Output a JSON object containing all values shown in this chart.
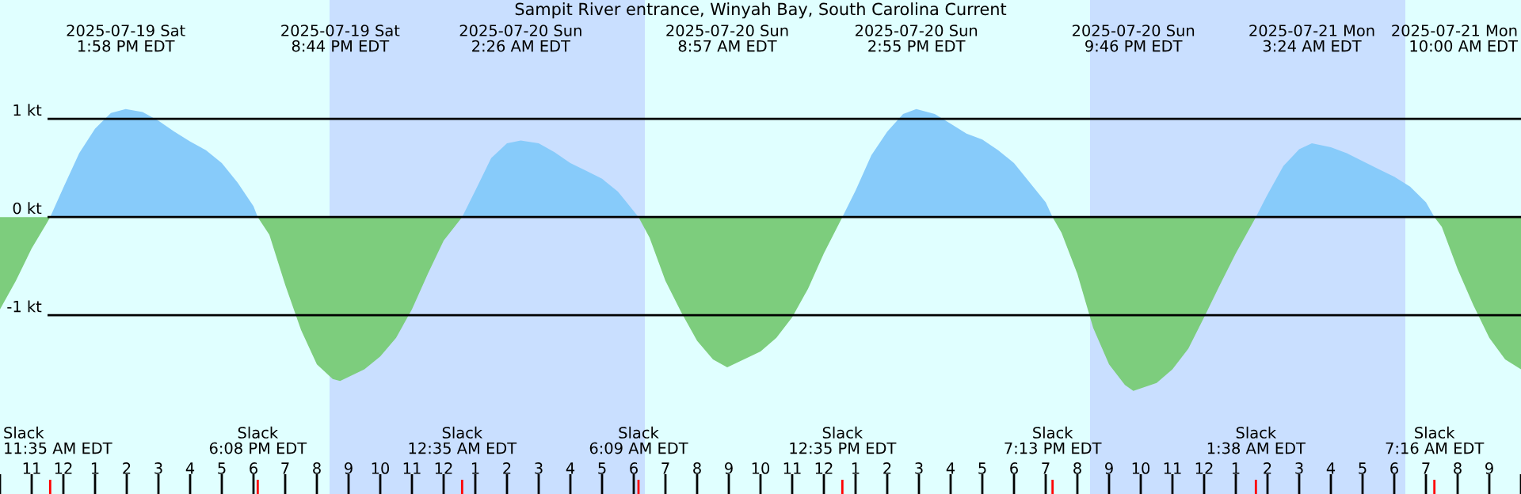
{
  "chart_data": {
    "type": "area",
    "title": "Sampit River entrance, Winyah Bay, South Carolina Current",
    "series": [
      {
        "color": "#87cbfa",
        "x": [
          "2025-07-19T11:35",
          "2025-07-19T12:00",
          "2025-07-19T12:30",
          "2025-07-19T13:00",
          "2025-07-19T13:30",
          "2025-07-19T13:58",
          "2025-07-19T14:30",
          "2025-07-19T15:00",
          "2025-07-19T15:30",
          "2025-07-19T16:00",
          "2025-07-19T16:30",
          "2025-07-19T17:00",
          "2025-07-19T17:30",
          "2025-07-19T18:00",
          "2025-07-19T18:08",
          null,
          "2025-07-20T00:35",
          "2025-07-20T01:00",
          "2025-07-20T01:30",
          "2025-07-20T02:00",
          "2025-07-20T02:26",
          "2025-07-20T03:00",
          "2025-07-20T03:30",
          "2025-07-20T04:00",
          "2025-07-20T04:30",
          "2025-07-20T05:00",
          "2025-07-20T05:30",
          "2025-07-20T06:09",
          null,
          "2025-07-20T12:35",
          "2025-07-20T13:00",
          "2025-07-20T13:30",
          "2025-07-20T14:00",
          "2025-07-20T14:30",
          "2025-07-20T14:55",
          "2025-07-20T15:30",
          "2025-07-20T16:00",
          "2025-07-20T16:30",
          "2025-07-20T17:00",
          "2025-07-20T17:30",
          "2025-07-20T18:00",
          "2025-07-20T18:30",
          "2025-07-20T19:00",
          "2025-07-20T19:13",
          null,
          "2025-07-21T01:38",
          "2025-07-21T02:00",
          "2025-07-21T02:30",
          "2025-07-21T03:00",
          "2025-07-21T03:24",
          "2025-07-21T04:00",
          "2025-07-21T04:30",
          "2025-07-21T05:00",
          "2025-07-21T05:30",
          "2025-07-21T06:00",
          "2025-07-21T06:30",
          "2025-07-21T07:00",
          "2025-07-21T07:16"
        ],
        "values": [
          0,
          0.3,
          0.65,
          0.9,
          1.06,
          1.1,
          1.07,
          0.98,
          0.87,
          0.77,
          0.68,
          0.55,
          0.35,
          0.11,
          0,
          null,
          0,
          0.27,
          0.6,
          0.75,
          0.78,
          0.75,
          0.66,
          0.55,
          0.47,
          0.39,
          0.26,
          0,
          null,
          0,
          0.27,
          0.63,
          0.87,
          1.05,
          1.1,
          1.05,
          0.95,
          0.85,
          0.79,
          0.68,
          0.55,
          0.35,
          0.15,
          0,
          null,
          0,
          0.23,
          0.52,
          0.69,
          0.75,
          0.71,
          0.65,
          0.57,
          0.49,
          0.41,
          0.31,
          0.15,
          0
        ]
      },
      {
        "color": "#7dcd7d",
        "x": [
          "2025-07-19T10:00",
          "2025-07-19T10:30",
          "2025-07-19T11:00",
          "2025-07-19T11:30",
          "2025-07-19T11:35",
          null,
          "2025-07-19T18:08",
          "2025-07-19T18:30",
          "2025-07-19T19:00",
          "2025-07-19T19:30",
          "2025-07-19T20:00",
          "2025-07-19T20:30",
          "2025-07-19T20:44",
          "2025-07-19T21:30",
          "2025-07-19T22:00",
          "2025-07-19T22:30",
          "2025-07-19T23:00",
          "2025-07-19T23:30",
          "2025-07-20T00:00",
          "2025-07-20T00:35",
          null,
          "2025-07-20T06:09",
          "2025-07-20T06:30",
          "2025-07-20T07:00",
          "2025-07-20T07:30",
          "2025-07-20T08:00",
          "2025-07-20T08:30",
          "2025-07-20T08:57",
          "2025-07-20T10:00",
          "2025-07-20T10:30",
          "2025-07-20T11:00",
          "2025-07-20T11:30",
          "2025-07-20T12:00",
          "2025-07-20T12:35",
          null,
          "2025-07-20T19:13",
          "2025-07-20T19:30",
          "2025-07-20T20:00",
          "2025-07-20T20:30",
          "2025-07-20T21:00",
          "2025-07-20T21:30",
          "2025-07-20T21:46",
          "2025-07-20T22:30",
          "2025-07-20T23:00",
          "2025-07-20T23:30",
          "2025-07-21T00:00",
          "2025-07-21T00:30",
          "2025-07-21T01:00",
          "2025-07-21T01:38",
          null,
          "2025-07-21T07:16",
          "2025-07-21T07:30",
          "2025-07-21T08:00",
          "2025-07-21T08:30",
          "2025-07-21T09:00",
          "2025-07-21T09:30",
          "2025-07-21T10:00"
        ],
        "values": [
          -0.94,
          -0.65,
          -0.32,
          -0.05,
          0,
          null,
          0,
          -0.18,
          -0.69,
          -1.15,
          -1.5,
          -1.65,
          -1.67,
          -1.55,
          -1.42,
          -1.23,
          -0.94,
          -0.58,
          -0.24,
          0,
          null,
          0,
          -0.21,
          -0.65,
          -0.97,
          -1.26,
          -1.45,
          -1.53,
          -1.37,
          -1.23,
          -1.02,
          -0.73,
          -0.37,
          0,
          null,
          0,
          -0.16,
          -0.58,
          -1.13,
          -1.5,
          -1.71,
          -1.77,
          -1.69,
          -1.55,
          -1.34,
          -1.02,
          -0.69,
          -0.37,
          0,
          null,
          0,
          -0.1,
          -0.53,
          -0.9,
          -1.23,
          -1.45,
          -1.55
        ]
      }
    ],
    "xlim": [
      "2025-07-19T10:00",
      "2025-07-21T10:00"
    ],
    "xticks": [
      {
        "value": "2025-07-19T10:00",
        "label": null
      },
      {
        "value": "2025-07-19T11:00",
        "label": "11"
      },
      {
        "value": "2025-07-19T12:00",
        "label": "12"
      },
      {
        "value": "2025-07-19T13:00",
        "label": "1"
      },
      {
        "value": "2025-07-19T14:00",
        "label": "2"
      },
      {
        "value": "2025-07-19T15:00",
        "label": "3"
      },
      {
        "value": "2025-07-19T16:00",
        "label": "4"
      },
      {
        "value": "2025-07-19T17:00",
        "label": "5"
      },
      {
        "value": "2025-07-19T18:00",
        "label": "6"
      },
      {
        "value": "2025-07-19T19:00",
        "label": "7"
      },
      {
        "value": "2025-07-19T20:00",
        "label": "8"
      },
      {
        "value": "2025-07-19T21:00",
        "label": "9"
      },
      {
        "value": "2025-07-19T22:00",
        "label": "10"
      },
      {
        "value": "2025-07-19T23:00",
        "label": "11"
      },
      {
        "value": "2025-07-20T00:00",
        "label": "12"
      },
      {
        "value": "2025-07-20T01:00",
        "label": "1"
      },
      {
        "value": "2025-07-20T02:00",
        "label": "2"
      },
      {
        "value": "2025-07-20T03:00",
        "label": "3"
      },
      {
        "value": "2025-07-20T04:00",
        "label": "4"
      },
      {
        "value": "2025-07-20T05:00",
        "label": "5"
      },
      {
        "value": "2025-07-20T06:00",
        "label": "6"
      },
      {
        "value": "2025-07-20T07:00",
        "label": "7"
      },
      {
        "value": "2025-07-20T08:00",
        "label": "8"
      },
      {
        "value": "2025-07-20T09:00",
        "label": "9"
      },
      {
        "value": "2025-07-20T10:00",
        "label": "10"
      },
      {
        "value": "2025-07-20T11:00",
        "label": "11"
      },
      {
        "value": "2025-07-20T12:00",
        "label": "12"
      },
      {
        "value": "2025-07-20T13:00",
        "label": "1"
      },
      {
        "value": "2025-07-20T14:00",
        "label": "2"
      },
      {
        "value": "2025-07-20T15:00",
        "label": "3"
      },
      {
        "value": "2025-07-20T16:00",
        "label": "4"
      },
      {
        "value": "2025-07-20T17:00",
        "label": "5"
      },
      {
        "value": "2025-07-20T18:00",
        "label": "6"
      },
      {
        "value": "2025-07-20T19:00",
        "label": "7"
      },
      {
        "value": "2025-07-20T20:00",
        "label": "8"
      },
      {
        "value": "2025-07-20T21:00",
        "label": "9"
      },
      {
        "value": "2025-07-20T22:00",
        "label": "10"
      },
      {
        "value": "2025-07-20T23:00",
        "label": "11"
      },
      {
        "value": "2025-07-21T00:00",
        "label": "12"
      },
      {
        "value": "2025-07-21T01:00",
        "label": "1"
      },
      {
        "value": "2025-07-21T02:00",
        "label": "2"
      },
      {
        "value": "2025-07-21T03:00",
        "label": "3"
      },
      {
        "value": "2025-07-21T04:00",
        "label": "4"
      },
      {
        "value": "2025-07-21T05:00",
        "label": "5"
      },
      {
        "value": "2025-07-21T06:00",
        "label": "6"
      },
      {
        "value": "2025-07-21T07:00",
        "label": "7"
      },
      {
        "value": "2025-07-21T08:00",
        "label": "8"
      },
      {
        "value": "2025-07-21T09:00",
        "label": "9"
      },
      {
        "value": "2025-07-21T10:00",
        "label": null
      }
    ],
    "ylim": [
      -2.82,
      2.21
    ],
    "yticks": [
      {
        "value": -1,
        "label": "-1 kt"
      },
      {
        "value": 0,
        "label": "0 kt"
      },
      {
        "value": 1,
        "label": "1 kt"
      }
    ],
    "grid": "y",
    "bands": [
      {
        "axis": "x",
        "from": "2025-07-19T20:24",
        "to": "2025-07-20T06:21",
        "color": "#c9dfff"
      },
      {
        "axis": "x",
        "from": "2025-07-20T20:24",
        "to": "2025-07-21T06:21",
        "color": "#c9dfff"
      }
    ],
    "annotations": [
      "Slack\n11:35 AM EDT",
      "2025-07-19 Sat\n1:58 PM EDT",
      "Slack\n6:08 PM EDT",
      "2025-07-19 Sat\n8:44 PM EDT",
      "Slack\n12:35 AM EDT",
      "2025-07-20 Sun\n2:26 AM EDT",
      "Slack\n6:09 AM EDT",
      "2025-07-20 Sun\n8:57 AM EDT",
      "Slack\n12:35 PM EDT",
      "2025-07-20 Sun\n2:55 PM EDT",
      "Slack\n7:13 PM EDT",
      "2025-07-20 Sun\n9:46 PM EDT",
      "Slack\n1:38 AM EDT",
      "2025-07-21 Mon\n3:24 AM EDT",
      "Slack\n7:16 AM EDT",
      "2025-07-21 Mon\n10:00 AM EDT"
    ]
  }
}
